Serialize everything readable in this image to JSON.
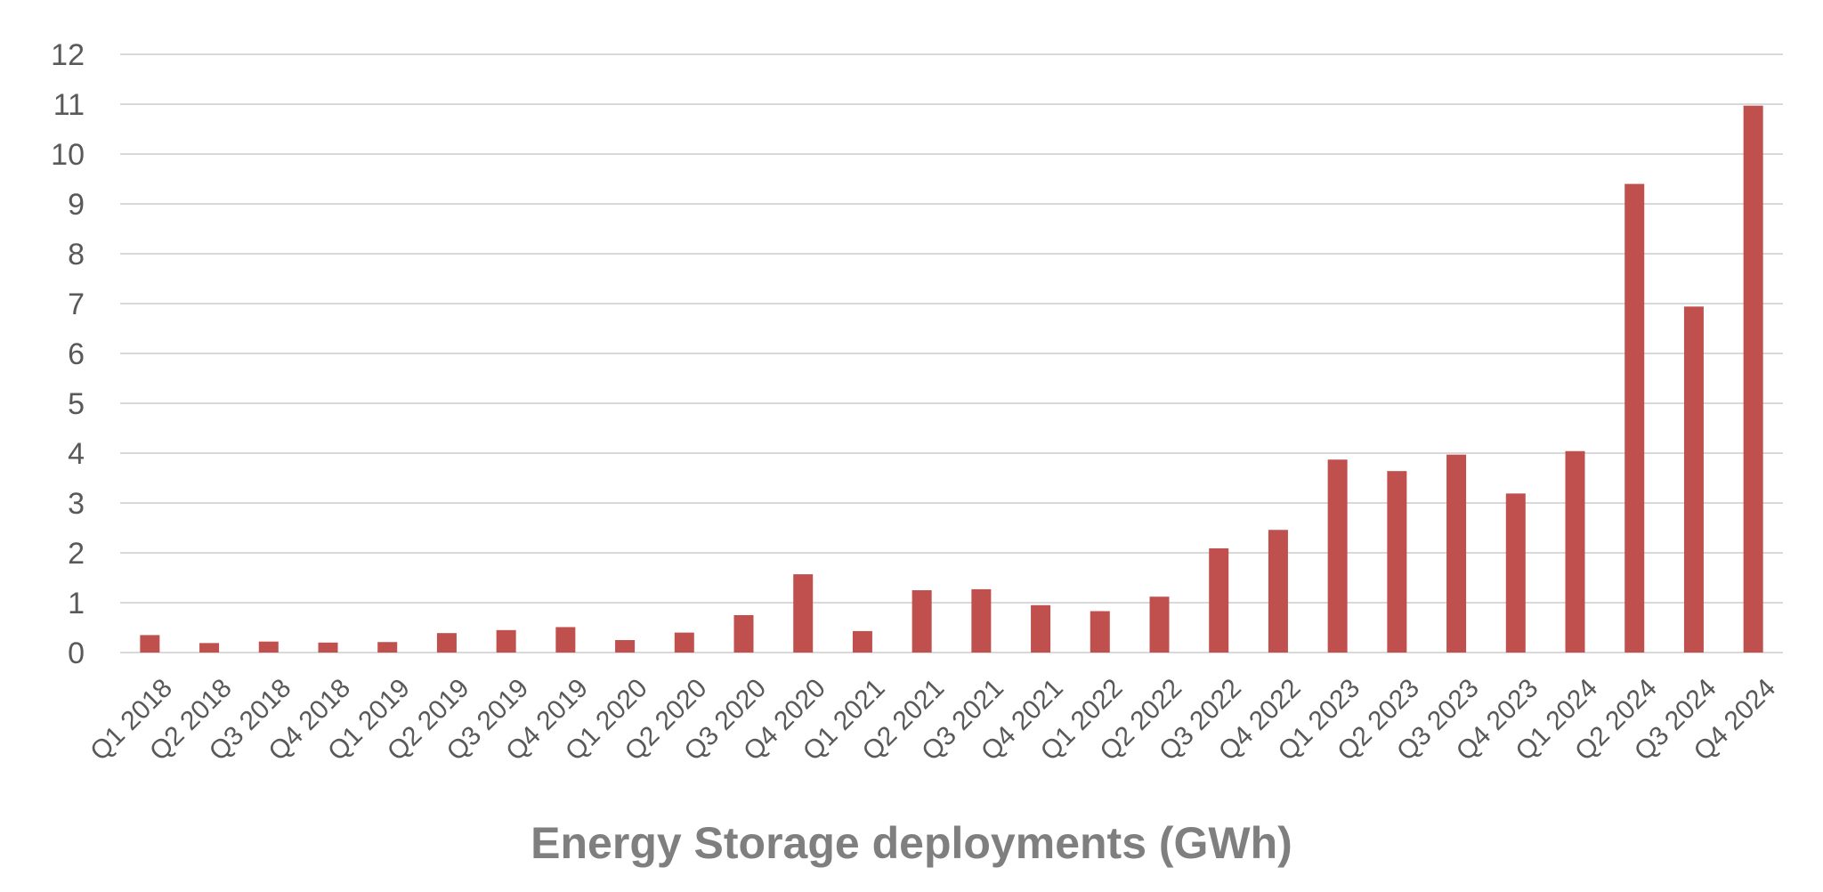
{
  "chart_data": {
    "type": "bar",
    "title": "Energy Storage deployments (GWh)",
    "xlabel": "",
    "ylabel": "",
    "ylim": [
      0,
      12
    ],
    "yticks": [
      "0",
      "1",
      "2",
      "3",
      "4",
      "5",
      "6",
      "7",
      "8",
      "9",
      "10",
      "11",
      "12"
    ],
    "grid": true,
    "legend": "none",
    "bar_color": "#c0504d",
    "categories": [
      "Q1 2018",
      "Q2 2018",
      "Q3 2018",
      "Q4 2018",
      "Q1 2019",
      "Q2 2019",
      "Q3 2019",
      "Q4 2019",
      "Q1 2020",
      "Q2 2020",
      "Q3 2020",
      "Q4 2020",
      "Q1 2021",
      "Q2 2021",
      "Q3 2021",
      "Q4 2021",
      "Q1 2022",
      "Q2 2022",
      "Q3 2022",
      "Q4 2022",
      "Q1 2023",
      "Q2 2023",
      "Q3 2023",
      "Q4 2023",
      "Q1 2024",
      "Q2 2024",
      "Q3 2024",
      "Q4 2024"
    ],
    "values": [
      0.35,
      0.19,
      0.22,
      0.2,
      0.21,
      0.39,
      0.45,
      0.51,
      0.25,
      0.4,
      0.75,
      1.57,
      0.43,
      1.25,
      1.27,
      0.95,
      0.83,
      1.12,
      2.09,
      2.46,
      3.87,
      3.64,
      3.97,
      3.19,
      4.04,
      9.4,
      6.94,
      10.97
    ]
  }
}
